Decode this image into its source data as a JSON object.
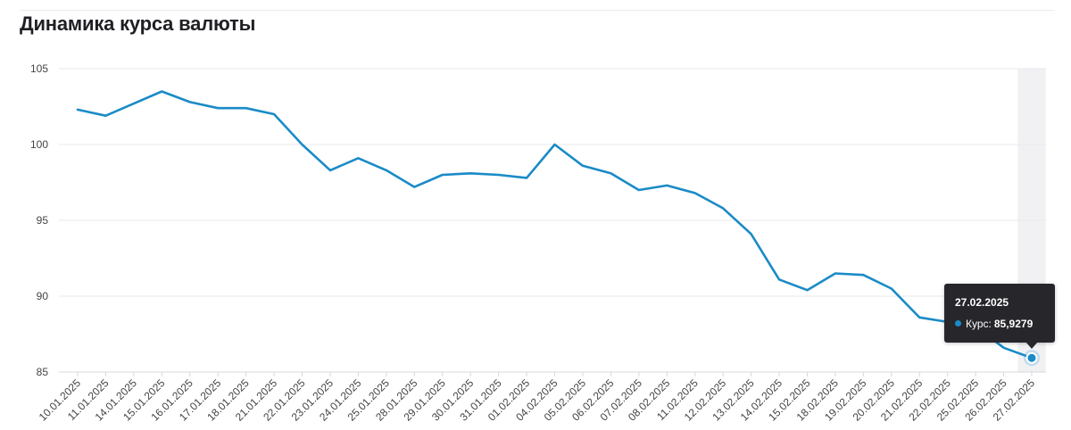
{
  "title": "Динамика курса валюты",
  "tooltip": {
    "date": "27.02.2025",
    "label": "Курс:",
    "value": "85,9279"
  },
  "colors": {
    "line": "#1a8bc7",
    "grid": "#e9e9ee",
    "axis": "#d8d8de",
    "highlight_band": "#f1f1f4",
    "tick_text": "#444444"
  },
  "chart_data": {
    "type": "line",
    "title": "Динамика курса валюты",
    "xlabel": "",
    "ylabel": "",
    "ylim": [
      85,
      105
    ],
    "yticks": [
      85,
      90,
      95,
      100,
      105
    ],
    "grid": true,
    "categories": [
      "10.01.2025",
      "11.01.2025",
      "14.01.2025",
      "15.01.2025",
      "16.01.2025",
      "17.01.2025",
      "18.01.2025",
      "21.01.2025",
      "22.01.2025",
      "23.01.2025",
      "24.01.2025",
      "25.01.2025",
      "28.01.2025",
      "29.01.2025",
      "30.01.2025",
      "31.01.2025",
      "01.02.2025",
      "04.02.2025",
      "05.02.2025",
      "06.02.2025",
      "07.02.2025",
      "08.02.2025",
      "11.02.2025",
      "12.02.2025",
      "13.02.2025",
      "14.02.2025",
      "15.02.2025",
      "18.02.2025",
      "19.02.2025",
      "20.02.2025",
      "21.02.2025",
      "22.02.2025",
      "25.02.2025",
      "26.02.2025",
      "27.02.2025"
    ],
    "series": [
      {
        "name": "Курс",
        "values": [
          102.3,
          101.9,
          102.7,
          103.5,
          102.8,
          102.4,
          102.4,
          102.0,
          100.0,
          98.3,
          99.1,
          98.3,
          97.2,
          98.0,
          98.1,
          98.0,
          97.8,
          100.0,
          98.6,
          98.1,
          97.0,
          97.3,
          96.8,
          95.8,
          94.1,
          91.1,
          90.4,
          91.5,
          91.4,
          90.5,
          88.6,
          88.3,
          88.0,
          86.6,
          85.9279
        ]
      }
    ],
    "highlight_index": 34
  }
}
